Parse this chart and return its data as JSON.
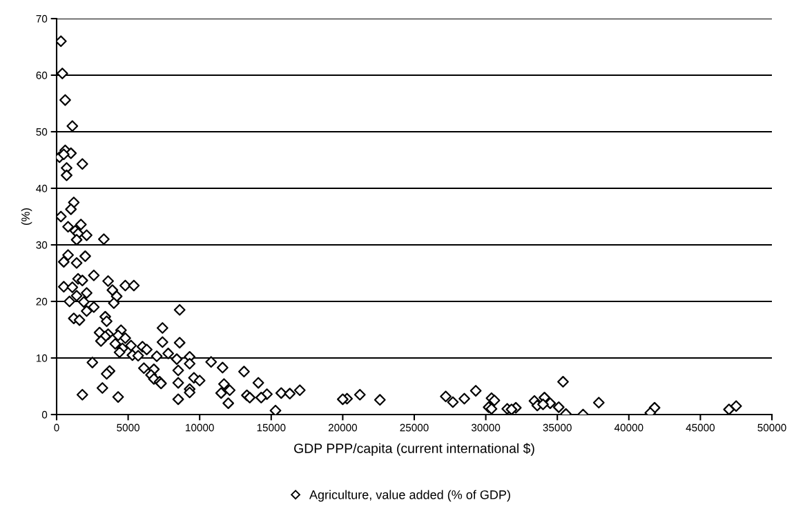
{
  "chart_data": {
    "type": "scatter",
    "xlabel": "GDP PPP/capita (current international $)",
    "ylabel": "(%)",
    "xlim": [
      0,
      50000
    ],
    "xticks": [
      0,
      5000,
      10000,
      15000,
      20000,
      25000,
      30000,
      35000,
      40000,
      45000,
      50000
    ],
    "ylim": [
      0,
      70
    ],
    "yticks": [
      0,
      10,
      20,
      30,
      40,
      50,
      60,
      70
    ],
    "grid": "y",
    "legend": "bottom",
    "marker": "diamond",
    "series": [
      {
        "name": "Agriculture, value added (% of GDP)",
        "color": "#000000",
        "x": [
          300,
          400,
          600,
          1100,
          600,
          1000,
          200,
          500,
          1800,
          700,
          700,
          1200,
          1000,
          300,
          1700,
          800,
          1300,
          1500,
          2100,
          3300,
          1400,
          800,
          2000,
          500,
          1400,
          2600,
          1500,
          1800,
          3600,
          4800,
          5400,
          500,
          1100,
          3900,
          2100,
          1400,
          4200,
          900,
          1900,
          4000,
          2600,
          8600,
          2100,
          3400,
          1200,
          1600,
          3500,
          7400,
          4500,
          3000,
          3600,
          4300,
          3400,
          4800,
          3100,
          7400,
          8600,
          4100,
          5200,
          6000,
          4600,
          6300,
          4400,
          7800,
          5300,
          5700,
          7000,
          9300,
          8400,
          10800,
          2500,
          9300,
          11600,
          6100,
          6800,
          8500,
          13100,
          3700,
          3500,
          6600,
          9600,
          6800,
          10000,
          35400,
          7200,
          8500,
          7300,
          11700,
          14100,
          3200,
          9300,
          12100,
          17000,
          29300,
          9300,
          11500,
          15700,
          16300,
          14700,
          1800,
          21200,
          13300,
          27200,
          4300,
          13500,
          14300,
          34100,
          30400,
          20300,
          28500,
          8500,
          20000,
          22600,
          30600,
          33400,
          27700,
          37900,
          12000,
          34500,
          33600,
          34000,
          47500,
          35100,
          30200,
          32100,
          41800,
          31500,
          30400,
          47000,
          31800,
          15300,
          35600,
          36800,
          41500
        ],
        "values": [
          66,
          60.3,
          55.6,
          51,
          46.7,
          46.2,
          45.5,
          46,
          44.3,
          43.6,
          42.3,
          37.5,
          36.3,
          35,
          33.6,
          33.2,
          32.5,
          32,
          31.7,
          31,
          30.9,
          28.2,
          28,
          27,
          26.8,
          24.6,
          24,
          23.7,
          23.6,
          22.8,
          22.8,
          22.6,
          22.5,
          22,
          21.5,
          21,
          20.9,
          20,
          19.9,
          19.7,
          19,
          18.5,
          18.3,
          17.3,
          17,
          16.7,
          16.5,
          15.3,
          14.9,
          14.5,
          14.2,
          14,
          13.8,
          13.5,
          13,
          12.8,
          12.7,
          12.5,
          12.2,
          12,
          11.7,
          11.5,
          11,
          10.8,
          10.5,
          10.4,
          10.3,
          10.2,
          9.8,
          9.3,
          9.2,
          9,
          8.3,
          8.2,
          8,
          7.8,
          7.6,
          7.7,
          7.2,
          7,
          6.5,
          6.3,
          6,
          5.8,
          5.8,
          5.6,
          5.5,
          5.4,
          5.6,
          4.7,
          4.5,
          4.3,
          4.3,
          4.2,
          3.9,
          3.8,
          3.8,
          3.7,
          3.6,
          3.5,
          3.5,
          3.4,
          3.2,
          3.1,
          3,
          3,
          3,
          2.9,
          2.8,
          2.8,
          2.7,
          2.7,
          2.6,
          2.5,
          2.4,
          2.2,
          2.1,
          2,
          2,
          1.6,
          1.8,
          1.5,
          1.3,
          1.3,
          1.2,
          1.2,
          1,
          1,
          0.9,
          0.9,
          0.7,
          0.1,
          0,
          0.3
        ]
      }
    ]
  }
}
